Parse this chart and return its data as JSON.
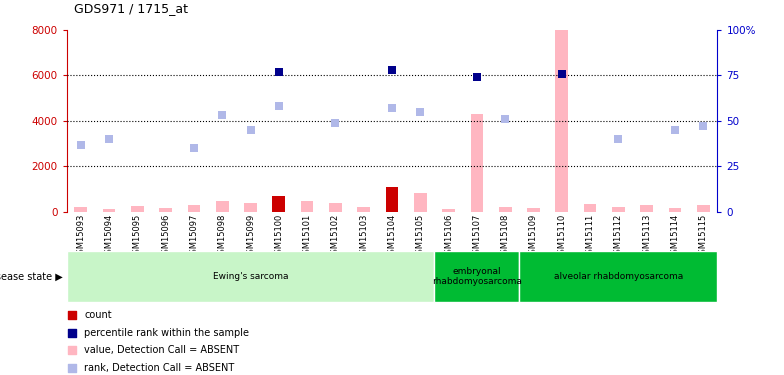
{
  "title": "GDS971 / 1715_at",
  "samples": [
    "GSM15093",
    "GSM15094",
    "GSM15095",
    "GSM15096",
    "GSM15097",
    "GSM15098",
    "GSM15099",
    "GSM15100",
    "GSM15101",
    "GSM15102",
    "GSM15103",
    "GSM15104",
    "GSM15105",
    "GSM15106",
    "GSM15107",
    "GSM15108",
    "GSM15109",
    "GSM15110",
    "GSM15111",
    "GSM15112",
    "GSM15113",
    "GSM15114",
    "GSM15115"
  ],
  "count_values": [
    0,
    0,
    0,
    0,
    0,
    0,
    0,
    700,
    0,
    0,
    0,
    1100,
    0,
    0,
    0,
    0,
    0,
    0,
    0,
    0,
    0,
    0,
    0
  ],
  "rank_values": [
    0,
    0,
    0,
    0,
    0,
    0,
    0,
    77,
    0,
    0,
    0,
    78,
    0,
    0,
    74,
    0,
    0,
    76,
    0,
    0,
    0,
    0,
    0
  ],
  "absent_value": [
    200,
    120,
    280,
    160,
    300,
    500,
    380,
    300,
    480,
    390,
    200,
    200,
    820,
    120,
    4300,
    200,
    160,
    8100,
    340,
    200,
    290,
    160,
    290
  ],
  "absent_rank": [
    37,
    40,
    0,
    0,
    35,
    53,
    45,
    58,
    0,
    49,
    0,
    57,
    55,
    0,
    0,
    51,
    0,
    0,
    0,
    40,
    0,
    45,
    47
  ],
  "ylim_left": [
    0,
    8000
  ],
  "ylim_right": [
    0,
    100
  ],
  "count_color": "#cc0000",
  "rank_color": "#00008b",
  "absent_value_color": "#ffb6c1",
  "absent_rank_color": "#b0b8e8",
  "group_configs": [
    {
      "label": "Ewing's sarcoma",
      "start": 0,
      "end": 13,
      "color": "#c8f5c8"
    },
    {
      "label": "embryonal\nrhabdomyosarcoma",
      "start": 13,
      "end": 16,
      "color": "#00bb33"
    },
    {
      "label": "alveolar rhabdomyosarcoma",
      "start": 16,
      "end": 23,
      "color": "#00bb33"
    }
  ],
  "legend_items": [
    {
      "color": "#cc0000",
      "label": "count"
    },
    {
      "color": "#00008b",
      "label": "percentile rank within the sample"
    },
    {
      "color": "#ffb6c1",
      "label": "value, Detection Call = ABSENT"
    },
    {
      "color": "#b0b8e8",
      "label": "rank, Detection Call = ABSENT"
    }
  ]
}
